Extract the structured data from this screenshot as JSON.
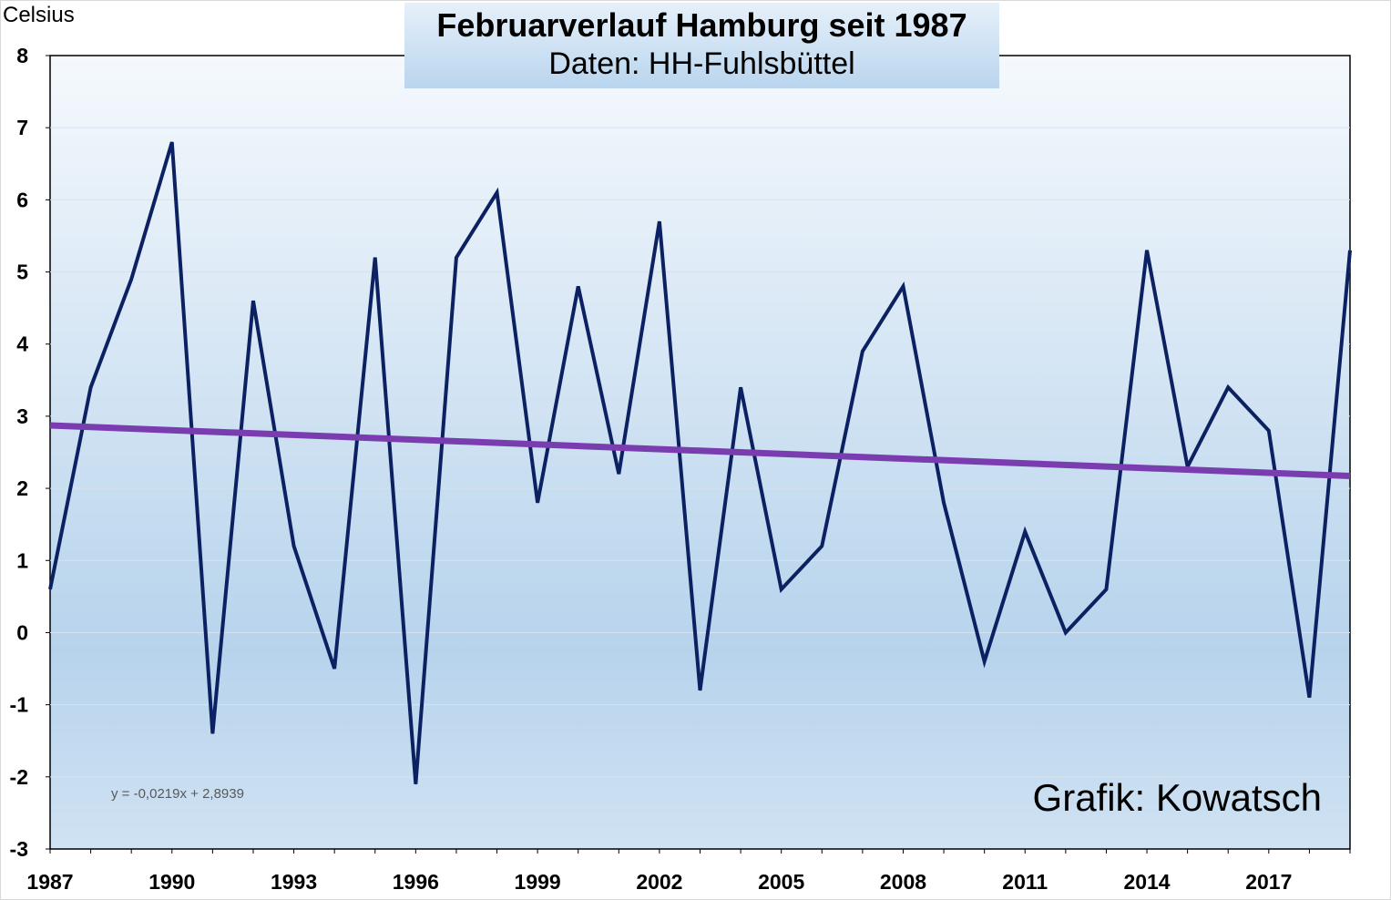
{
  "chart_data": {
    "type": "line",
    "title": "Februarverlauf Hamburg seit 1987",
    "subtitle": "Daten: HH-Fuhlsbüttel",
    "ylabel": "Celsius",
    "xlabel": "",
    "ylim": [
      -3,
      8
    ],
    "yticks": [
      "8",
      "7",
      "6",
      "5",
      "4",
      "3",
      "2",
      "1",
      "0",
      "-1",
      "-2",
      "-3"
    ],
    "xticks": [
      "1987",
      "1990",
      "1993",
      "1996",
      "1999",
      "2002",
      "2005",
      "2008",
      "2011",
      "2014",
      "2017"
    ],
    "x": [
      1987,
      1988,
      1989,
      1990,
      1991,
      1992,
      1993,
      1994,
      1995,
      1996,
      1997,
      1998,
      1999,
      2000,
      2001,
      2002,
      2003,
      2004,
      2005,
      2006,
      2007,
      2008,
      2009,
      2010,
      2011,
      2012,
      2013,
      2014,
      2015,
      2016,
      2017,
      2018,
      2019
    ],
    "series": [
      {
        "name": "Februar",
        "color": "#0c2161",
        "values": [
          0.6,
          3.4,
          4.9,
          6.8,
          -1.4,
          4.6,
          1.2,
          -0.5,
          5.2,
          -2.1,
          5.2,
          6.1,
          1.8,
          4.8,
          2.2,
          5.7,
          -0.8,
          3.4,
          0.6,
          1.2,
          3.9,
          4.8,
          1.8,
          -0.4,
          1.4,
          0.0,
          0.6,
          5.3,
          2.3,
          3.4,
          2.8,
          -0.9,
          5.3
        ]
      },
      {
        "name": "Trend",
        "color": "#7a3db0",
        "slope": -0.0219,
        "intercept": 2.8939
      }
    ],
    "trend_equation": "y = -0,0219x + 2,8939",
    "annotation": "Grafik: Kowatsch",
    "grid": true
  }
}
